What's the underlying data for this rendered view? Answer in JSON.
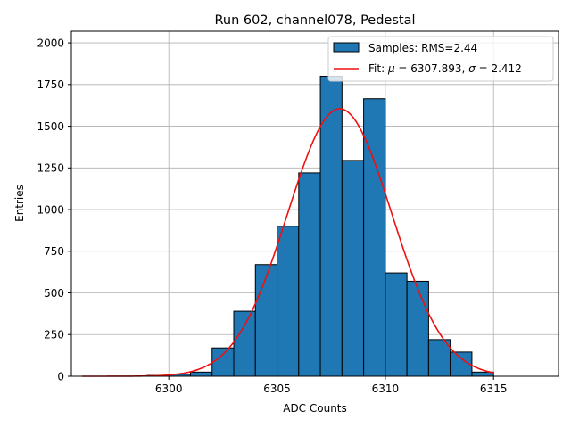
{
  "chart_data": {
    "type": "bar",
    "title": "Run 602, channel078, Pedestal",
    "xlabel": "ADC Counts",
    "ylabel": "Entries",
    "xlim": [
      6295.5,
      6318
    ],
    "ylim": [
      0,
      2070
    ],
    "xticks": [
      6300,
      6305,
      6310,
      6315
    ],
    "yticks": [
      0,
      250,
      500,
      750,
      1000,
      1250,
      1500,
      1750,
      2000
    ],
    "grid": true,
    "legend_position": "top-right",
    "bin_width": 1,
    "bins": [
      6299,
      6300,
      6301,
      6302,
      6303,
      6304,
      6305,
      6306,
      6307,
      6308,
      6309,
      6310,
      6311,
      6312,
      6313,
      6314
    ],
    "values": [
      5,
      12,
      25,
      170,
      390,
      670,
      900,
      1220,
      1800,
      1295,
      1665,
      620,
      570,
      220,
      145,
      25
    ],
    "series": [
      {
        "name": "Samples: RMS=2.44",
        "type": "histogram",
        "color": "#1f77b4",
        "edgecolor": "#000000"
      },
      {
        "name_prefix": "Fit: ",
        "mu_symbol": "μ",
        "mu_text": " = 6307.893, ",
        "sigma_symbol": "σ",
        "sigma_text": " = 2.412",
        "type": "gaussian",
        "color": "#ee1111",
        "mu": 6307.893,
        "sigma": 2.412,
        "amplitude": 1605,
        "x_range": [
          6296,
          6315
        ]
      }
    ]
  }
}
